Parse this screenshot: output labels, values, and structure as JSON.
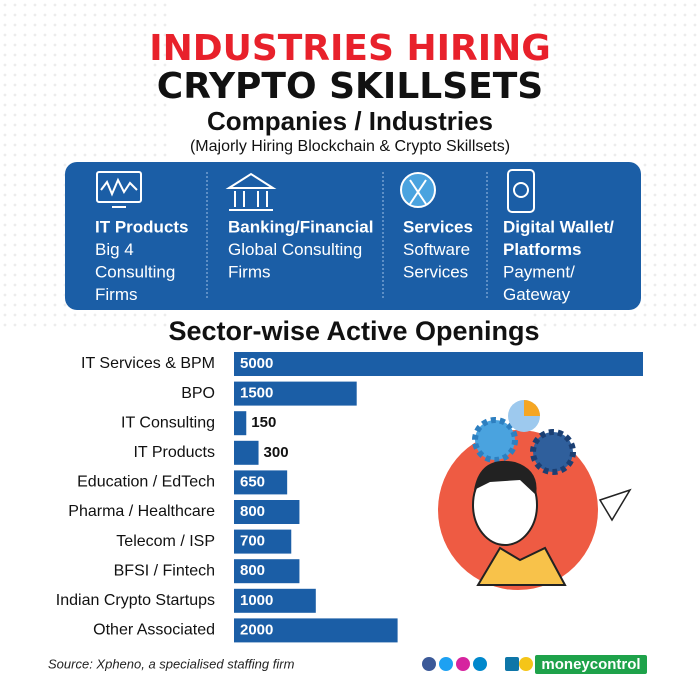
{
  "header": {
    "title_line1": "INDUSTRIES HIRING",
    "title_line2": "CRYPTO SKILLSETS"
  },
  "companies": {
    "title": "Companies / Industries",
    "subtitle": "(Majorly Hiring Blockchain & Crypto Skillsets)",
    "columns": [
      {
        "heading": [
          "IT Products"
        ],
        "text": [
          "Big 4",
          "Consulting",
          "Firms"
        ]
      },
      {
        "heading": [
          "Banking/Financial"
        ],
        "text": [
          "Global Consulting",
          "Firms"
        ]
      },
      {
        "heading": [
          "Services"
        ],
        "text": [
          "Software",
          "Services"
        ]
      },
      {
        "heading": [
          "Digital Wallet/",
          "Platforms"
        ],
        "text": [
          "Payment/",
          "Gateway"
        ]
      }
    ]
  },
  "chart_data": {
    "type": "bar",
    "orientation": "horizontal",
    "title": "Sector-wise Active Openings",
    "categories": [
      "IT Services & BPM",
      "BPO",
      "IT Consulting",
      "IT Products",
      "Education / EdTech",
      "Pharma / Healthcare",
      "Telecom / ISP",
      "BFSI / Fintech",
      "Indian Crypto Startups",
      "Other Associated"
    ],
    "values": [
      5000,
      1500,
      150,
      300,
      650,
      800,
      700,
      800,
      1000,
      2000
    ],
    "color": "#1b5ea6"
  },
  "footer": {
    "source": "Source: Xpheno, a specialised staffing firm",
    "brand": "moneycontrol"
  }
}
